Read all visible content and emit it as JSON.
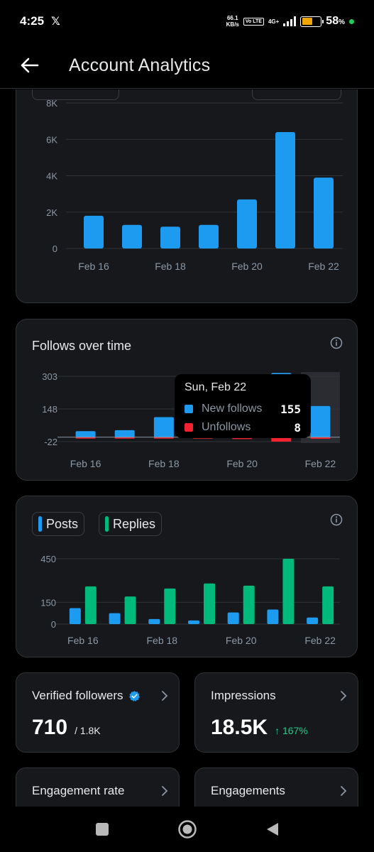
{
  "status_bar": {
    "time": "4:25",
    "app_badge": "𝕏",
    "net_speed_value": "66.1",
    "net_speed_unit": "KB/s",
    "volte": "Vo LTE",
    "network": "4G+",
    "battery_pct": "58",
    "battery_suffix": "%",
    "battery_level": 0.58
  },
  "header": {
    "title": "Account Analytics"
  },
  "chart1": {
    "type": "bar",
    "y_ticks": [
      "8K",
      "6K",
      "4K",
      "2K",
      "0"
    ],
    "x_labels": [
      "Feb 16",
      "Feb 18",
      "Feb 20",
      "Feb 22"
    ],
    "color": "#1d9bf0",
    "ylim": [
      0,
      8000
    ],
    "values": [
      1800,
      1300,
      1200,
      1300,
      2700,
      6400,
      3900
    ]
  },
  "follows": {
    "title": "Follows over time",
    "y_ticks": [
      "303",
      "148",
      "-22"
    ],
    "x_labels": [
      "Feb 16",
      "Feb 18",
      "Feb 20",
      "Feb 22"
    ],
    "new_color": "#1d9bf0",
    "unf_color": "#f4212e",
    "ylim": [
      -22,
      303
    ],
    "new_follows": [
      30,
      35,
      100,
      20,
      20,
      320,
      155
    ],
    "unfollows": [
      4,
      3,
      5,
      4,
      9,
      22,
      8
    ],
    "tooltip": {
      "date": "Sun, Feb 22",
      "new_label": "New follows",
      "new_value": "155",
      "unf_label": "Unfollows",
      "unf_value": "8"
    }
  },
  "posts_replies": {
    "legend_posts": "Posts",
    "legend_replies": "Replies",
    "posts_color": "#1d9bf0",
    "replies_color": "#00ba7c",
    "y_ticks": [
      "450",
      "150",
      "0"
    ],
    "x_labels": [
      "Feb 16",
      "Feb 18",
      "Feb 20",
      "Feb 22"
    ],
    "ylim": [
      0,
      450
    ],
    "posts": [
      110,
      75,
      35,
      25,
      80,
      100,
      45
    ],
    "replies": [
      260,
      190,
      245,
      280,
      265,
      450,
      260
    ]
  },
  "stats": {
    "verified_label": "Verified followers",
    "verified_value": "710",
    "verified_total": "/ 1.8K",
    "impressions_label": "Impressions",
    "impressions_value": "18.5K",
    "impressions_change": "↑ 167%",
    "engagement_rate_label": "Engagement rate",
    "engagements_label": "Engagements"
  }
}
